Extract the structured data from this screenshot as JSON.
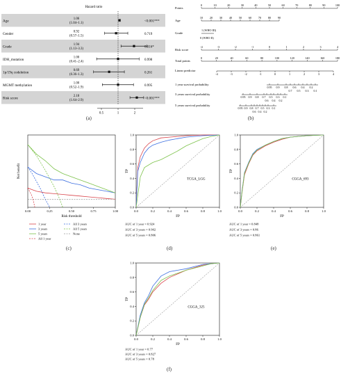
{
  "colors": {
    "red": "#d9434a",
    "blue": "#3b6ee0",
    "green": "#7cc24a",
    "gray": "#9a9a9a",
    "band": "#d4d4d4"
  },
  "panel_labels": [
    "(a)",
    "(b)",
    "(c)",
    "(d)",
    "(e)",
    "(f)"
  ],
  "forest": {
    "title": "Hazard ratio",
    "rows": [
      {
        "name": "Age",
        "hr": "1.06",
        "ci": "(1.04–1.1)",
        "p": "<0.001***",
        "v": 1.06,
        "lo": 1.04,
        "hi": 1.1
      },
      {
        "name": "Gender",
        "hr": "0.92",
        "ci": "(0.57–1.5)",
        "p": "0.719",
        "v": 0.92,
        "lo": 0.57,
        "hi": 1.5
      },
      {
        "name": "Grade",
        "hr": "1.94",
        "ci": "(1.13–3.3)",
        "p": "0.016*",
        "v": 1.94,
        "lo": 1.13,
        "hi": 3.3
      },
      {
        "name": "IDH_mutation",
        "hr": "1.00",
        "ci": "(0.41–2.4)",
        "p": "0.998",
        "v": 1.0,
        "lo": 0.41,
        "hi": 2.4
      },
      {
        "name": "1p/19q codeletion",
        "hr": "0.69",
        "ci": "(0.36–1.3)",
        "p": "0.261",
        "v": 0.69,
        "lo": 0.36,
        "hi": 1.3
      },
      {
        "name": "MGMT methylation",
        "hr": "1.00",
        "ci": "(0.52–1.9)",
        "p": "0.995",
        "v": 1.0,
        "lo": 0.52,
        "hi": 1.9
      },
      {
        "name": "Risk score",
        "hr": "2.18",
        "ci": "(1.64–2.9)",
        "p": "<0.001***",
        "v": 2.18,
        "lo": 1.64,
        "hi": 2.9
      }
    ],
    "ticks": [
      "0.5",
      "1",
      "2"
    ]
  },
  "nomogram": {
    "rows": [
      "Points",
      "Age",
      "Grade",
      "Risk score",
      "Total points",
      "Linear predictor",
      "1 year survival probability",
      "3 years survival probability",
      "5 years survival probability"
    ],
    "points_ticks": [
      "0",
      "10",
      "20",
      "30",
      "40",
      "50",
      "60",
      "70",
      "80",
      "90",
      "100"
    ],
    "age_ticks": [
      "10",
      "20",
      "30",
      "40",
      "50",
      "60",
      "70",
      "80",
      "90"
    ],
    "grade_labels": [
      "1 (WHO III)",
      "0 (WHO II)"
    ],
    "risk_ticks": [
      "-4",
      "-3",
      "-2",
      "-1",
      "0",
      "1",
      "2",
      "3",
      "4"
    ],
    "total_ticks": [
      "0",
      "20",
      "40",
      "60",
      "80",
      "100",
      "120",
      "140",
      "160",
      "180"
    ],
    "lp_ticks": [
      "-4",
      "-3",
      "-2",
      "-1",
      "0",
      "1",
      "2",
      "3",
      "4"
    ],
    "surv1_ticks": [
      "0.95",
      "0.9",
      "0.8",
      "0.6",
      "0.4",
      "0.2",
      "0.7",
      "0.5",
      "0.3",
      "0.1"
    ],
    "surv3_ticks": [
      "0.95",
      "0.9",
      "0.8",
      "0.7",
      "0.5",
      "0.3",
      "0.1",
      "0.6",
      "0.4",
      "0.2"
    ],
    "surv5_ticks": [
      "0.95",
      "0.9",
      "0.8",
      "0.7",
      "0.5",
      "0.3",
      "0.1",
      "0.6",
      "0.4",
      "0.2"
    ]
  },
  "chart_data": [
    {
      "type": "line",
      "panel": "(c)",
      "title": "",
      "xlabel": "Risk threshold",
      "ylabel": "Net benefit",
      "xlim": [
        0,
        1
      ],
      "ylim": [
        -0.05,
        0.4
      ],
      "x_ticks": [
        "0.00",
        "0.25",
        "0.50",
        "0.75",
        "1.00"
      ],
      "series": [
        {
          "name": "1 year",
          "color": "red",
          "dash": false,
          "x": [
            0,
            0.05,
            0.1,
            0.2,
            0.3,
            0.4,
            0.5,
            0.6,
            0.7,
            0.8,
            0.9,
            1.0
          ],
          "y": [
            0.07,
            0.06,
            0.05,
            0.04,
            0.035,
            0.03,
            0.025,
            0.02,
            0.015,
            0.01,
            0.005,
            0.0
          ]
        },
        {
          "name": "3 years",
          "color": "blue",
          "dash": false,
          "x": [
            0,
            0.05,
            0.1,
            0.2,
            0.3,
            0.4,
            0.5,
            0.6,
            0.7,
            0.8,
            0.9,
            1.0
          ],
          "y": [
            0.2,
            0.18,
            0.16,
            0.14,
            0.12,
            0.12,
            0.1,
            0.09,
            0.07,
            0.06,
            0.05,
            0.04
          ]
        },
        {
          "name": "5 years",
          "color": "green",
          "dash": false,
          "x": [
            0,
            0.05,
            0.1,
            0.2,
            0.3,
            0.4,
            0.5,
            0.6,
            0.7,
            0.8,
            0.9,
            1.0
          ],
          "y": [
            0.34,
            0.31,
            0.28,
            0.24,
            0.19,
            0.16,
            0.14,
            0.12,
            0.1,
            0.08,
            0.06,
            0.04
          ]
        },
        {
          "name": "All 1 year",
          "color": "red",
          "dash": true,
          "x": [
            0,
            0.02,
            0.04,
            0.06,
            0.08
          ],
          "y": [
            0.07,
            0.05,
            0.03,
            0.0,
            -0.05
          ]
        },
        {
          "name": "All 3 years",
          "color": "blue",
          "dash": true,
          "x": [
            0,
            0.05,
            0.1,
            0.15,
            0.2,
            0.25
          ],
          "y": [
            0.2,
            0.16,
            0.11,
            0.06,
            0.0,
            -0.05
          ]
        },
        {
          "name": "All 5 years",
          "color": "green",
          "dash": true,
          "x": [
            0,
            0.1,
            0.2,
            0.3,
            0.35,
            0.4
          ],
          "y": [
            0.34,
            0.27,
            0.18,
            0.08,
            0.02,
            -0.05
          ]
        },
        {
          "name": "None",
          "color": "gray",
          "dash": true,
          "x": [
            0,
            1
          ],
          "y": [
            0,
            0
          ]
        }
      ]
    },
    {
      "type": "line",
      "panel": "(d)",
      "annotation": "TCGA_LGG",
      "xlabel": "FP",
      "ylabel": "TP",
      "xlim": [
        0,
        1
      ],
      "ylim": [
        0,
        1
      ],
      "ticks": [
        "0.0",
        "0.2",
        "0.4",
        "0.6",
        "0.8",
        "1.0"
      ],
      "series": [
        {
          "name": "AUC of 1 year = 0.924",
          "color": "red",
          "x": [
            0,
            0.02,
            0.05,
            0.1,
            0.15,
            0.2,
            0.3,
            0.4,
            0.5,
            0.6,
            0.8,
            1.0
          ],
          "y": [
            0,
            0.55,
            0.7,
            0.82,
            0.88,
            0.92,
            0.96,
            0.97,
            0.98,
            0.99,
            1.0,
            1.0
          ]
        },
        {
          "name": "AUC of 3 years = 0.902",
          "color": "blue",
          "x": [
            0,
            0.02,
            0.05,
            0.1,
            0.15,
            0.2,
            0.3,
            0.4,
            0.5,
            0.6,
            0.8,
            1.0
          ],
          "y": [
            0,
            0.5,
            0.62,
            0.75,
            0.82,
            0.86,
            0.9,
            0.93,
            0.95,
            0.97,
            0.99,
            1.0
          ]
        },
        {
          "name": "AUC of 5 years = 0.806",
          "color": "green",
          "x": [
            0,
            0.05,
            0.1,
            0.2,
            0.3,
            0.4,
            0.5,
            0.6,
            0.7,
            0.8,
            0.9,
            1.0
          ],
          "y": [
            0,
            0.42,
            0.55,
            0.62,
            0.66,
            0.72,
            0.78,
            0.85,
            0.9,
            0.95,
            0.98,
            1.0
          ]
        }
      ]
    },
    {
      "type": "line",
      "panel": "(e)",
      "annotation": "CGGA_693",
      "xlabel": "FP",
      "ylabel": "TP",
      "xlim": [
        0,
        1
      ],
      "ylim": [
        0,
        1
      ],
      "ticks": [
        "0.0",
        "0.2",
        "0.4",
        "0.6",
        "0.8",
        "1.0"
      ],
      "series": [
        {
          "name": "AUC of 1 year = 0.848",
          "color": "red",
          "x": [
            0,
            0.02,
            0.05,
            0.1,
            0.15,
            0.2,
            0.3,
            0.4,
            0.5,
            0.6,
            0.8,
            1.0
          ],
          "y": [
            0,
            0.2,
            0.45,
            0.6,
            0.72,
            0.78,
            0.85,
            0.9,
            0.94,
            0.97,
            0.99,
            1.0
          ]
        },
        {
          "name": "AUC of 3 years = 0.86",
          "color": "blue",
          "x": [
            0,
            0.02,
            0.05,
            0.1,
            0.15,
            0.2,
            0.3,
            0.4,
            0.5,
            0.6,
            0.8,
            1.0
          ],
          "y": [
            0,
            0.22,
            0.48,
            0.62,
            0.74,
            0.8,
            0.86,
            0.91,
            0.95,
            0.97,
            0.99,
            1.0
          ]
        },
        {
          "name": "AUC of 5 years = 0.861",
          "color": "green",
          "x": [
            0,
            0.02,
            0.05,
            0.1,
            0.15,
            0.2,
            0.3,
            0.4,
            0.5,
            0.6,
            0.8,
            1.0
          ],
          "y": [
            0,
            0.21,
            0.47,
            0.61,
            0.73,
            0.79,
            0.86,
            0.91,
            0.95,
            0.97,
            0.99,
            1.0
          ]
        }
      ]
    },
    {
      "type": "line",
      "panel": "(f)",
      "annotation": "CGGA_325",
      "xlabel": "FP",
      "ylabel": "TP",
      "xlim": [
        0,
        1
      ],
      "ylim": [
        0,
        1
      ],
      "ticks": [
        "0.0",
        "0.2",
        "0.4",
        "0.6",
        "0.8",
        "1.0"
      ],
      "series": [
        {
          "name": "AUC of 1 year = 0.77",
          "color": "red",
          "x": [
            0,
            0.05,
            0.1,
            0.15,
            0.2,
            0.3,
            0.4,
            0.5,
            0.6,
            0.8,
            0.9,
            1.0
          ],
          "y": [
            0,
            0.25,
            0.42,
            0.5,
            0.6,
            0.72,
            0.8,
            0.85,
            0.9,
            0.97,
            0.99,
            1.0
          ]
        },
        {
          "name": "AUC of 3 years = 0.827",
          "color": "blue",
          "x": [
            0,
            0.05,
            0.1,
            0.15,
            0.2,
            0.3,
            0.4,
            0.5,
            0.6,
            0.8,
            0.9,
            1.0
          ],
          "y": [
            0,
            0.28,
            0.45,
            0.55,
            0.68,
            0.82,
            0.88,
            0.9,
            0.92,
            0.98,
            0.99,
            1.0
          ]
        },
        {
          "name": "AUC of 5 years = 0.78",
          "color": "green",
          "x": [
            0,
            0.05,
            0.1,
            0.15,
            0.2,
            0.3,
            0.4,
            0.5,
            0.6,
            0.8,
            0.9,
            1.0
          ],
          "y": [
            0,
            0.25,
            0.43,
            0.52,
            0.62,
            0.76,
            0.82,
            0.86,
            0.9,
            0.96,
            0.99,
            1.0
          ]
        }
      ]
    }
  ]
}
